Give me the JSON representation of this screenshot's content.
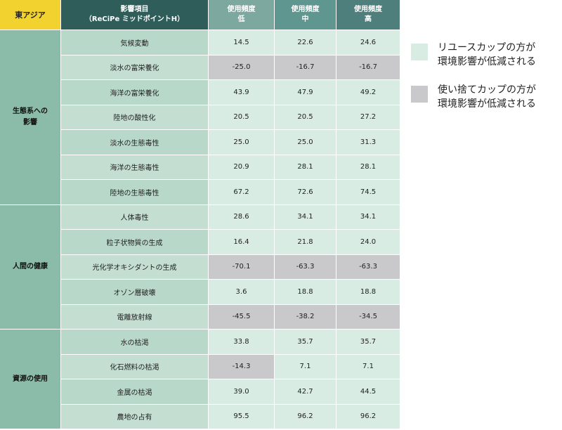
{
  "header": {
    "region": "東アジア",
    "item_title": "影響項目",
    "item_subtitle": "（ReCiPe ミッドポイントH）",
    "usage_label": "使用頻度",
    "low": "低",
    "mid": "中",
    "high": "高"
  },
  "categories": [
    {
      "label_lines": [
        "生態系への",
        "影響"
      ],
      "rows": [
        {
          "item": "気候変動",
          "values": [
            "14.5",
            "22.6",
            "24.6"
          ],
          "shade": [
            "green",
            "green",
            "green"
          ]
        },
        {
          "item": "淡水の富栄養化",
          "values": [
            "-25.0",
            "-16.7",
            "-16.7"
          ],
          "shade": [
            "gray",
            "gray",
            "gray"
          ]
        },
        {
          "item": "海洋の富栄養化",
          "values": [
            "43.9",
            "47.9",
            "49.2"
          ],
          "shade": [
            "green",
            "green",
            "green"
          ]
        },
        {
          "item": "陸地の酸性化",
          "values": [
            "20.5",
            "20.5",
            "27.2"
          ],
          "shade": [
            "green",
            "green",
            "green"
          ]
        },
        {
          "item": "淡水の生態毒性",
          "values": [
            "25.0",
            "25.0",
            "31.3"
          ],
          "shade": [
            "green",
            "green",
            "green"
          ]
        },
        {
          "item": "海洋の生態毒性",
          "values": [
            "20.9",
            "28.1",
            "28.1"
          ],
          "shade": [
            "green",
            "green",
            "green"
          ]
        },
        {
          "item": "陸地の生態毒性",
          "values": [
            "67.2",
            "72.6",
            "74.5"
          ],
          "shade": [
            "green",
            "green",
            "green"
          ]
        }
      ]
    },
    {
      "label_lines": [
        "人間の健康"
      ],
      "rows": [
        {
          "item": "人体毒性",
          "values": [
            "28.6",
            "34.1",
            "34.1"
          ],
          "shade": [
            "green",
            "green",
            "green"
          ]
        },
        {
          "item": "粒子状物質の生成",
          "values": [
            "16.4",
            "21.8",
            "24.0"
          ],
          "shade": [
            "green",
            "green",
            "green"
          ]
        },
        {
          "item": "光化学オキシダントの生成",
          "values": [
            "-70.1",
            "-63.3",
            "-63.3"
          ],
          "shade": [
            "gray",
            "gray",
            "gray"
          ]
        },
        {
          "item": "オゾン層破壊",
          "values": [
            "3.6",
            "18.8",
            "18.8"
          ],
          "shade": [
            "green",
            "green",
            "green"
          ]
        },
        {
          "item": "電離放射線",
          "values": [
            "-45.5",
            "-38.2",
            "-34.5"
          ],
          "shade": [
            "gray",
            "gray",
            "gray"
          ]
        }
      ]
    },
    {
      "label_lines": [
        "資源の使用"
      ],
      "rows": [
        {
          "item": "水の枯渇",
          "values": [
            "33.8",
            "35.7",
            "35.7"
          ],
          "shade": [
            "green",
            "green",
            "green"
          ]
        },
        {
          "item": "化石燃料の枯渇",
          "values": [
            "-14.3",
            "7.1",
            "7.1"
          ],
          "shade": [
            "gray",
            "green",
            "green"
          ]
        },
        {
          "item": "金属の枯渇",
          "values": [
            "39.0",
            "42.7",
            "44.5"
          ],
          "shade": [
            "green",
            "green",
            "green"
          ]
        },
        {
          "item": "農地の占有",
          "values": [
            "95.5",
            "96.2",
            "96.2"
          ],
          "shade": [
            "green",
            "green",
            "green"
          ]
        }
      ]
    }
  ],
  "legend": [
    {
      "lines": [
        "リユースカップの方が",
        "環境影響が低減される"
      ],
      "color": "#d8ece3"
    },
    {
      "lines": [
        "使い捨てカップの方が",
        "環境影響が低減される"
      ],
      "color": "#c9c9cb"
    }
  ],
  "colors": {
    "region_header": "#f2d22e",
    "item_header": "#2e5d5a",
    "category_bg": "#8bbcaa",
    "item_bg_1": "#b8d8c9",
    "item_bg_2": "#c4dfd2",
    "green_cell": "#d8ece3",
    "gray_cell": "#c9c9cb"
  }
}
